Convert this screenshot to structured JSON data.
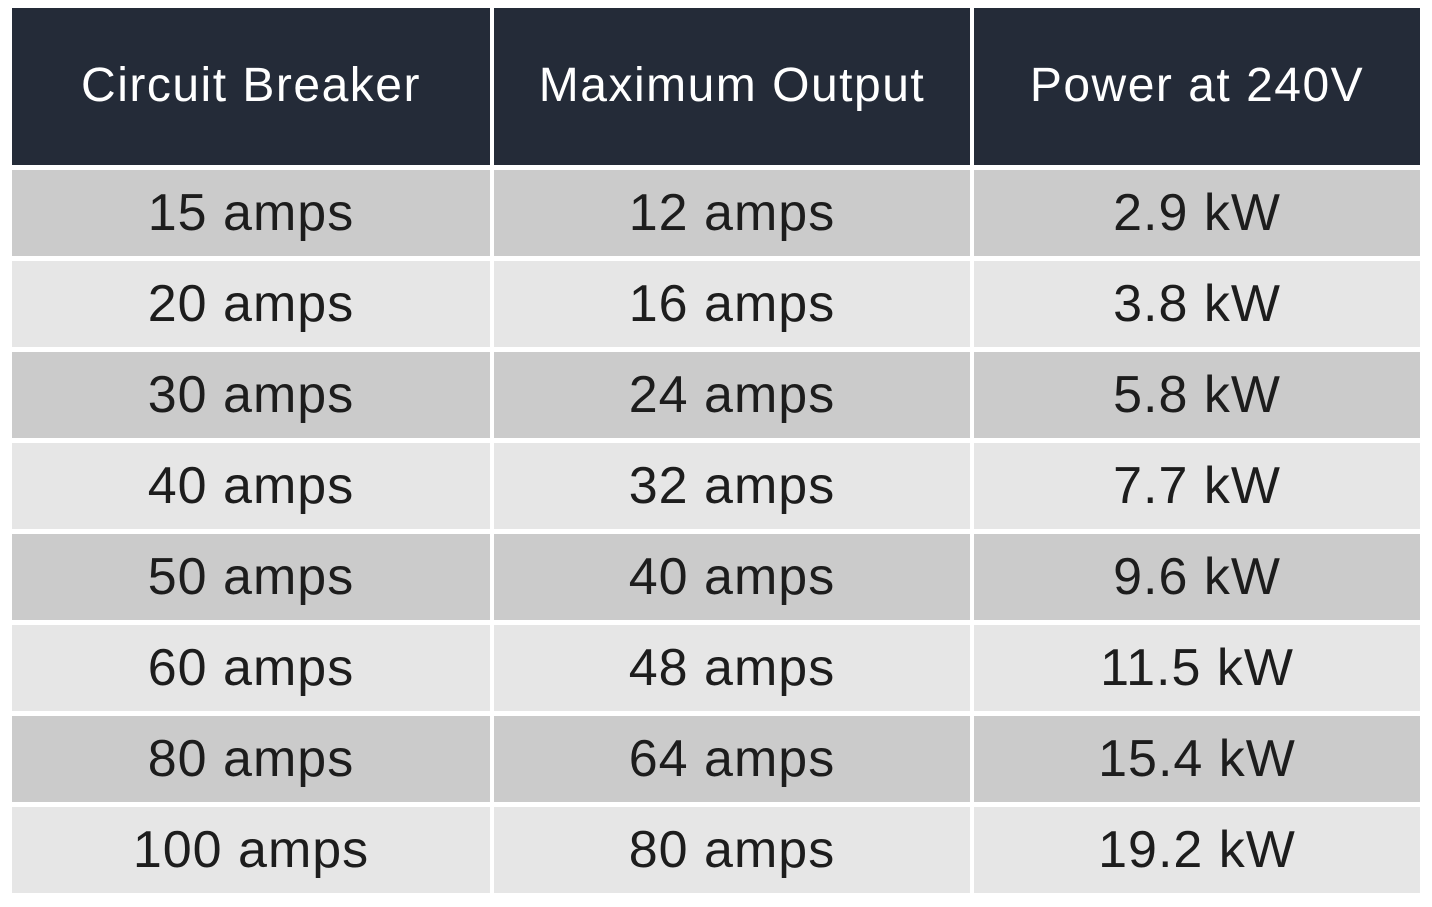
{
  "table": {
    "headers": [
      "Circuit Breaker",
      "Maximum Output",
      "Power at 240V"
    ],
    "rows": [
      [
        "15 amps",
        "12 amps",
        "2.9 kW"
      ],
      [
        "20 amps",
        "16 amps",
        "3.8 kW"
      ],
      [
        "30 amps",
        "24 amps",
        "5.8 kW"
      ],
      [
        "40 amps",
        "32 amps",
        "7.7 kW"
      ],
      [
        "50 amps",
        "40 amps",
        "9.6 kW"
      ],
      [
        "60 amps",
        "48 amps",
        "11.5 kW"
      ],
      [
        "80 amps",
        "64 amps",
        "15.4 kW"
      ],
      [
        "100 amps",
        "80 amps",
        "19.2 kW"
      ]
    ],
    "colors": {
      "header_bg": "#242b38",
      "header_text": "#ffffff",
      "row_dark_bg": "#cbcbcb",
      "row_light_bg": "#e6e6e6",
      "cell_text": "#1d1d1d",
      "divider": "#ffffff"
    }
  },
  "chart_data": {
    "type": "table",
    "title": "Circuit Breaker vs Maximum Output vs Power at 240V",
    "columns": [
      "Circuit Breaker",
      "Maximum Output",
      "Power at 240V"
    ],
    "circuit_breaker_amps": [
      15,
      20,
      30,
      40,
      50,
      60,
      80,
      100
    ],
    "maximum_output_amps": [
      12,
      16,
      24,
      32,
      40,
      48,
      64,
      80
    ],
    "power_at_240v_kw": [
      2.9,
      3.8,
      5.8,
      7.7,
      9.6,
      11.5,
      15.4,
      19.2
    ]
  }
}
